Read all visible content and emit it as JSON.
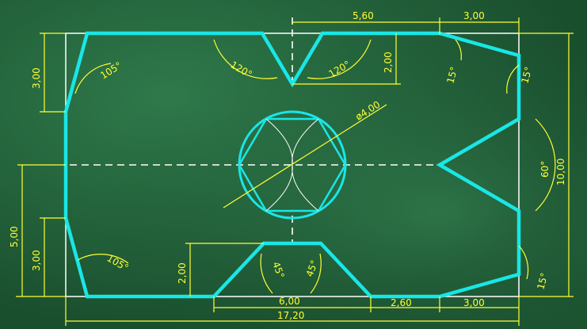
{
  "diagram": {
    "colors": {
      "background": "#1f5a35",
      "profile": "#19e6e6",
      "dimension": "#ffff33",
      "reference": "#ffffff",
      "centerline": "#ffffff"
    },
    "labels": {
      "dim_top_5_60": "5,60",
      "dim_top_3_00": "3,00",
      "dim_left_3_00_top": "3,00",
      "dim_left_5_00": "5,00",
      "dim_left_3_00_bottom": "3,00",
      "dim_right_10_00": "10,00",
      "dim_notch_2_00": "2,00",
      "dim_trap_2_00": "2,00",
      "dim_bottom_6_00": "6,00",
      "dim_bottom_2_60": "2,60",
      "dim_bottom_3_00": "3,00",
      "dim_bottom_17_20": "17,20",
      "dim_diameter": "ø4,00",
      "angle_105_top": "105°",
      "angle_105_bottom": "105°",
      "angle_120_left": "120°",
      "angle_120_right": "120°",
      "angle_15_top_a": "15°",
      "angle_15_top_b": "15°",
      "angle_15_bottom": "15°",
      "angle_60": "60°",
      "angle_45_left": "45°",
      "angle_45_right": "45°"
    }
  }
}
